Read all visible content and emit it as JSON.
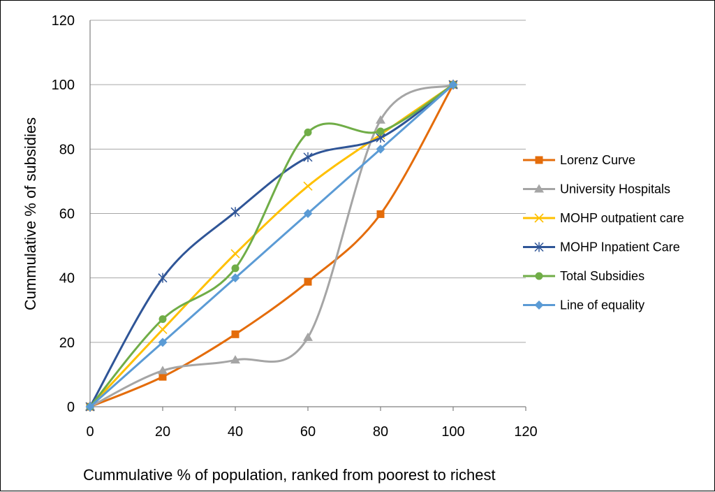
{
  "chart_data": {
    "type": "scatter",
    "title": "",
    "xlabel": "Cummulative % of population, ranked from poorest to richest",
    "ylabel": "Cummulative % of subsidies",
    "xlim": [
      0,
      120
    ],
    "ylim": [
      0,
      120
    ],
    "x_ticks": [
      "0",
      "20",
      "40",
      "60",
      "80",
      "100",
      "120"
    ],
    "y_ticks": [
      "0",
      "20",
      "40",
      "60",
      "80",
      "100",
      "120"
    ],
    "grid": true,
    "legend_position": "right",
    "x": [
      0,
      20,
      40,
      60,
      80,
      100
    ],
    "series": [
      {
        "name": "Lorenz Curve",
        "color": "#E46C0A",
        "marker": "square",
        "values": [
          0,
          9.3,
          22.5,
          38.8,
          59.8,
          100
        ]
      },
      {
        "name": "University Hospitals",
        "color": "#A5A5A5",
        "marker": "triangle",
        "values": [
          0,
          11.2,
          14.5,
          21.5,
          89,
          100
        ]
      },
      {
        "name": "MOHP outpatient care",
        "color": "#FFC000",
        "marker": "x",
        "values": [
          0,
          24,
          47.5,
          68.5,
          84.5,
          100
        ]
      },
      {
        "name": "MOHP Inpatient Care",
        "color": "#2F5597",
        "marker": "star",
        "values": [
          0,
          40,
          60.5,
          77.5,
          83.5,
          100
        ]
      },
      {
        "name": "Total Subsidies",
        "color": "#70AD47",
        "marker": "circle",
        "values": [
          0,
          27.2,
          43,
          85.2,
          85.5,
          100
        ]
      },
      {
        "name": "Line of equality",
        "color": "#5B9BD5",
        "marker": "diamond",
        "values": [
          0,
          20,
          40,
          60,
          80,
          100
        ]
      }
    ]
  }
}
